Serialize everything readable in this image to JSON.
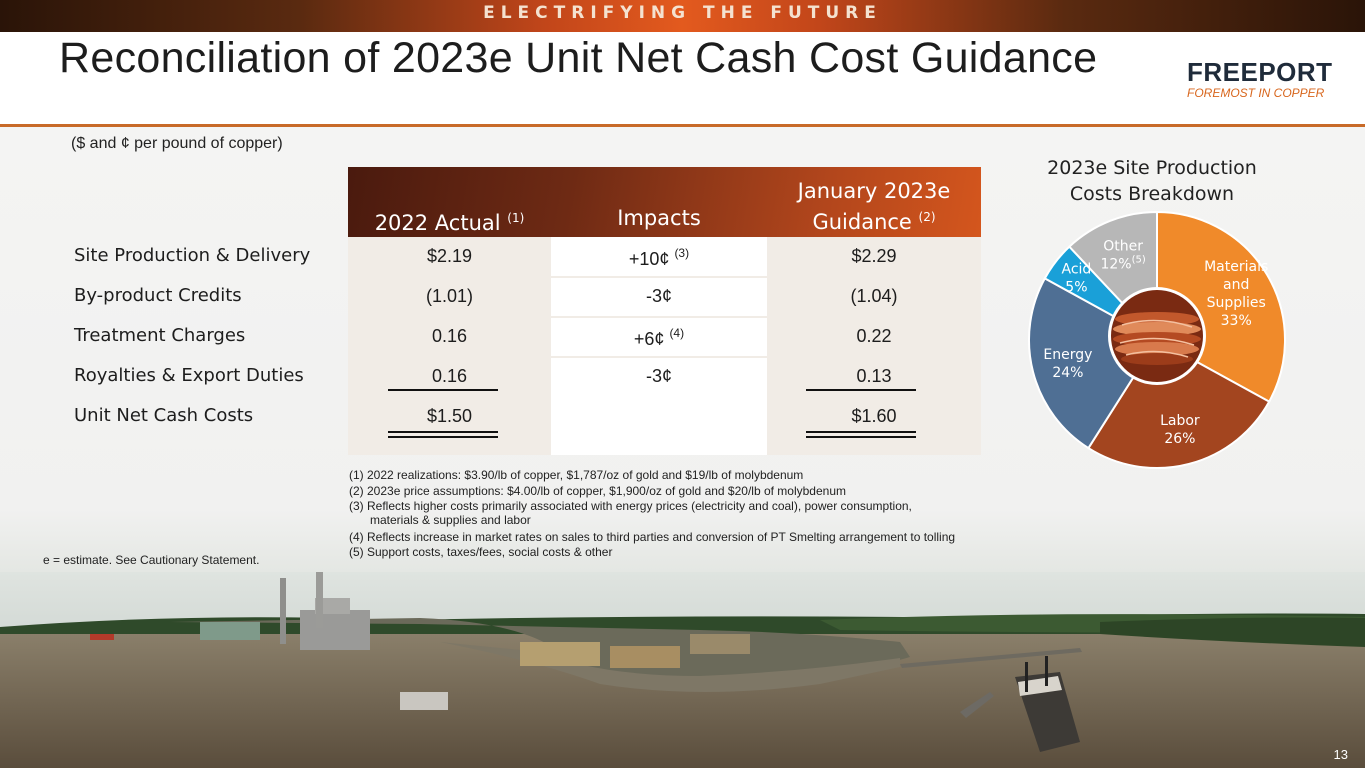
{
  "banner": {
    "text": "ELECTRIFYING THE FUTURE"
  },
  "header": {
    "title": "Reconciliation of 2023e Unit Net Cash Cost Guidance",
    "logo_main": "FREEPORT",
    "logo_sub": "FOREMOST IN COPPER"
  },
  "units_note": "($ and ¢ per pound of copper)",
  "table": {
    "columns": [
      {
        "label": "2022 Actual",
        "note": "(1)"
      },
      {
        "label": "Impacts",
        "note": ""
      },
      {
        "label_line1": "January 2023e",
        "label_line2": "Guidance",
        "note": "(2)"
      }
    ],
    "rows": [
      {
        "label": "Site Production & Delivery",
        "actual": "$2.19",
        "impact": "+10¢",
        "impact_note": "(3)",
        "guidance": "$2.29"
      },
      {
        "label": "By-product Credits",
        "actual": "(1.01)",
        "impact": "-3¢",
        "impact_note": "",
        "guidance": "(1.04)"
      },
      {
        "label": "Treatment Charges",
        "actual": "0.16",
        "impact": "+6¢",
        "impact_note": "(4)",
        "guidance": "0.22"
      },
      {
        "label": "Royalties & Export Duties",
        "actual": "0.16",
        "impact": "-3¢",
        "impact_note": "",
        "guidance": "0.13"
      },
      {
        "label": "Unit Net Cash Costs",
        "actual": "$1.50",
        "impact": "",
        "impact_note": "",
        "guidance": "$1.60"
      }
    ]
  },
  "footnotes": [
    "(1) 2022 realizations: $3.90/lb of copper, $1,787/oz of gold and $19/lb of molybdenum",
    "(2) 2023e price assumptions: $4.00/lb of copper, $1,900/oz of gold and $20/lb of molybdenum",
    "(3) Reflects higher costs primarily associated with energy prices (electricity and coal), power consumption,",
    "materials & supplies and labor",
    "(4) Reflects increase in market rates on sales to third parties and conversion of PT Smelting arrangement to tolling",
    "(5) Support costs, taxes/fees, social costs & other"
  ],
  "estimate_note": "e = estimate. See Cautionary Statement.",
  "chart_data": {
    "type": "pie",
    "title_line1": "2023e Site Production",
    "title_line2": "Costs Breakdown",
    "slices": [
      {
        "name_lines": [
          "Materials",
          "and",
          "Supplies"
        ],
        "value": 33,
        "pct_label": "33%",
        "color": "#f08a2a"
      },
      {
        "name_lines": [
          "Labor"
        ],
        "value": 26,
        "pct_label": "26%",
        "color": "#a3451f"
      },
      {
        "name_lines": [
          "Energy"
        ],
        "value": 24,
        "pct_label": "24%",
        "color": "#4f6f94"
      },
      {
        "name_lines": [
          "Acid"
        ],
        "value": 5,
        "pct_label": "5%",
        "color": "#1aa0d8"
      },
      {
        "name_lines": [
          "Other"
        ],
        "value": 12,
        "pct_label": "12%",
        "note": "(5)",
        "color": "#b7b7b7"
      }
    ]
  },
  "page_number": "13"
}
